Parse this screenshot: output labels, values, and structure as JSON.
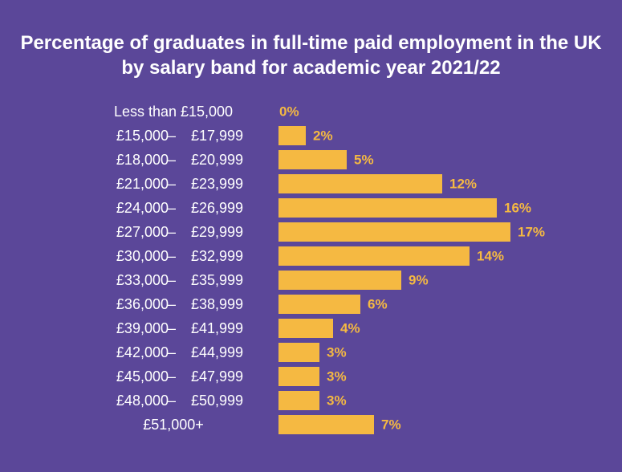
{
  "chart_data": {
    "type": "bar",
    "orientation": "horizontal",
    "title": "Percentage of graduates in full-time paid employment in the UK by salary band for academic year 2021/22",
    "categories": [
      {
        "from": "Less than £15,000",
        "to": ""
      },
      {
        "from": "£15,000",
        "to": "£17,999"
      },
      {
        "from": "£18,000",
        "to": "£20,999"
      },
      {
        "from": "£21,000",
        "to": "£23,999"
      },
      {
        "from": "£24,000",
        "to": "£26,999"
      },
      {
        "from": "£27,000",
        "to": "£29,999"
      },
      {
        "from": "£30,000",
        "to": "£32,999"
      },
      {
        "from": "£33,000",
        "to": "£35,999"
      },
      {
        "from": "£36,000",
        "to": "£38,999"
      },
      {
        "from": "£39,000",
        "to": "£41,999"
      },
      {
        "from": "£42,000",
        "to": "£44,999"
      },
      {
        "from": "£45,000",
        "to": "£47,999"
      },
      {
        "from": "£48,000",
        "to": "£50,999"
      },
      {
        "from": "£51,000+",
        "to": ""
      }
    ],
    "range_separator": "–",
    "values": [
      0,
      2,
      5,
      12,
      16,
      17,
      14,
      9,
      6,
      4,
      3,
      3,
      3,
      7
    ],
    "value_labels": [
      "0%",
      "2%",
      "5%",
      "12%",
      "16%",
      "17%",
      "14%",
      "9%",
      "6%",
      "4%",
      "3%",
      "3%",
      "3%",
      "7%"
    ],
    "unit": "%",
    "grid": false,
    "legend": "none",
    "colors": {
      "background": "#5b4799",
      "bar": "#f5b942",
      "text": "#ffffff",
      "value_label": "#f5b942"
    }
  }
}
